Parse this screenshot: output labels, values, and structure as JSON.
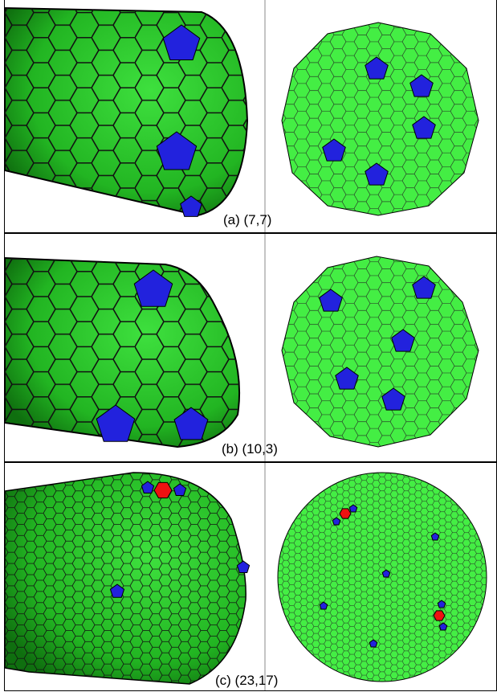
{
  "panels": [
    {
      "caption": "(a) (7,7)"
    },
    {
      "caption": "(b) (10,3)"
    },
    {
      "caption": "(c) (23,17)"
    }
  ]
}
